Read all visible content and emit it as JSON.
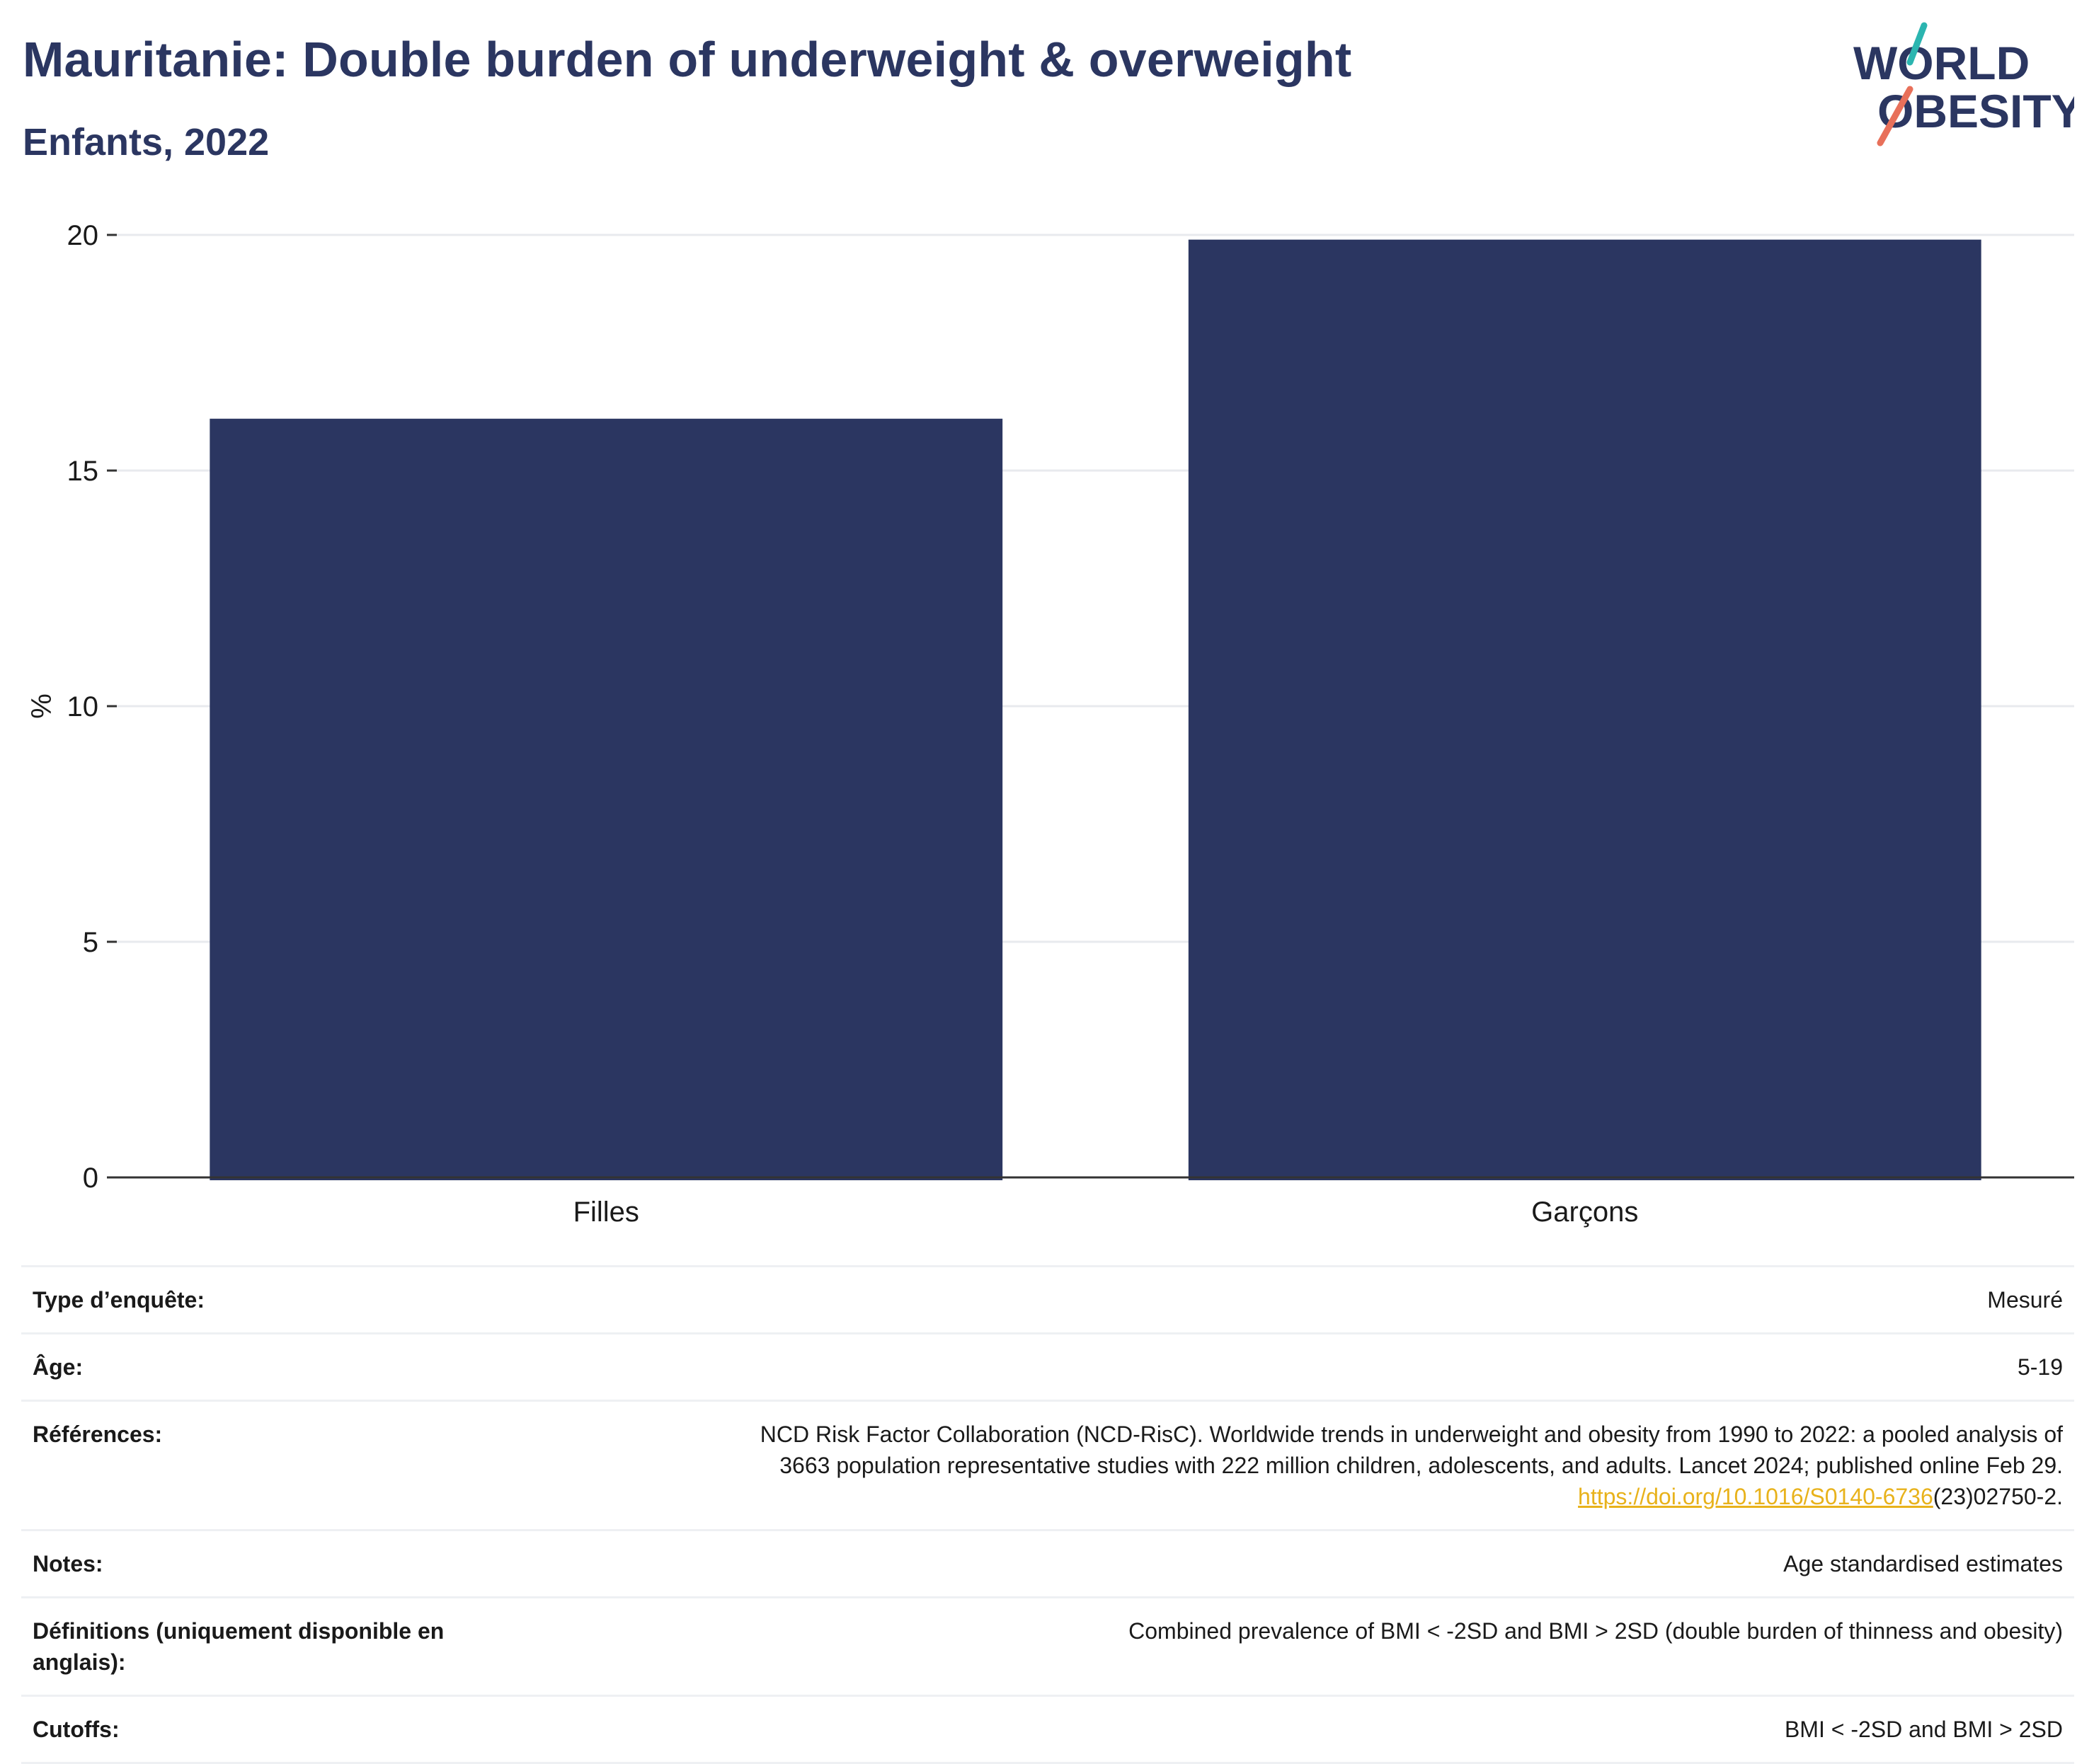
{
  "header": {
    "title": "Mauritanie: Double burden of underweight & overweight",
    "subtitle": "Enfants, 2022"
  },
  "logo": {
    "line1": "WORLD",
    "line2": "OBESITY",
    "colors": {
      "text": "#2b3661",
      "teal": "#2bb5b0",
      "coral": "#e8705a"
    }
  },
  "chart_data": {
    "type": "bar",
    "title": "Mauritanie: Double burden of underweight & overweight",
    "subtitle": "Enfants, 2022",
    "categories": [
      "Filles",
      "Garçons"
    ],
    "values": [
      16.1,
      19.9
    ],
    "ylabel": "%",
    "ylim": [
      0,
      20
    ],
    "yticks": [
      0,
      5,
      10,
      15,
      20
    ],
    "grid": true,
    "bar_color": "#2b3661"
  },
  "meta": [
    {
      "key": "Type d’enquête:",
      "value": "Mesuré"
    },
    {
      "key": "Âge:",
      "value": "5-19"
    },
    {
      "key": "Références:",
      "value_lines": [
        "NCD Risk Factor Collaboration (NCD-RisC). Worldwide trends in underweight and obesity from 1990 to 2022: a pooled analysis of",
        "3663 population representative studies with 222 million children, adolescents, and adults. Lancet 2024; published online Feb 29."
      ],
      "link": "https://doi.org/10.1016/S0140-6736",
      "link_suffix": "(23)02750-2."
    },
    {
      "key": "Notes:",
      "value": "Age standardised estimates"
    },
    {
      "key": "Définitions (uniquement disponible en anglais):",
      "value": "Combined prevalence of BMI < -2SD and BMI > 2SD (double burden of thinness and obesity)"
    },
    {
      "key": "Cutoffs:",
      "value": "BMI < -2SD and BMI > 2SD"
    }
  ]
}
